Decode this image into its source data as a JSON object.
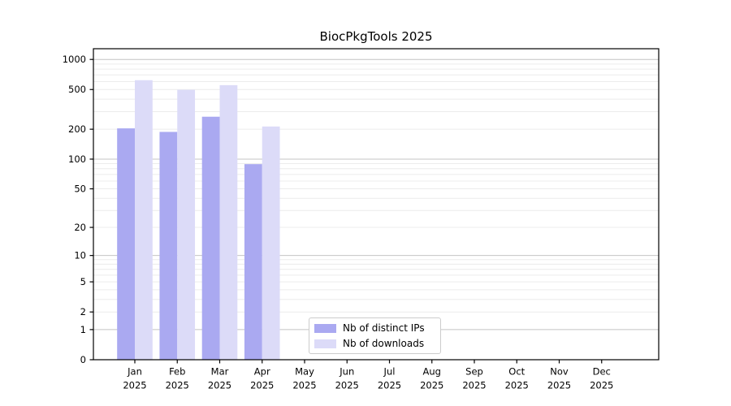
{
  "chart_data": {
    "type": "bar",
    "title": "BiocPkgTools 2025",
    "categories": [
      "Jan",
      "Feb",
      "Mar",
      "Apr",
      "May",
      "Jun",
      "Jul",
      "Aug",
      "Sep",
      "Oct",
      "Nov",
      "Dec"
    ],
    "category_year": "2025",
    "series": [
      {
        "name": "Nb of distinct IPs",
        "color": "#aaa9f1",
        "values": [
          204,
          188,
          267,
          89,
          null,
          null,
          null,
          null,
          null,
          null,
          null,
          null
        ]
      },
      {
        "name": "Nb of downloads",
        "color": "#dcdbf8",
        "values": [
          620,
          497,
          553,
          213,
          null,
          null,
          null,
          null,
          null,
          null,
          null,
          null
        ]
      }
    ],
    "yscale": "log10(value+1)",
    "yticks": [
      0,
      1,
      2,
      5,
      10,
      20,
      50,
      100,
      200,
      500,
      1000
    ],
    "ylim": [
      0,
      1280
    ],
    "xlabel": "",
    "ylabel": "",
    "grid": {
      "major_at": [
        1,
        10,
        100,
        1000
      ],
      "major_color": "#c4c4c4",
      "minor_color": "#ececec"
    },
    "legend": {
      "position": "inside-bottom-center",
      "border_color": "#cccccc",
      "background": "#ffffff"
    },
    "axis_color": "#000000",
    "text_color": "#000000",
    "background": "#ffffff"
  }
}
